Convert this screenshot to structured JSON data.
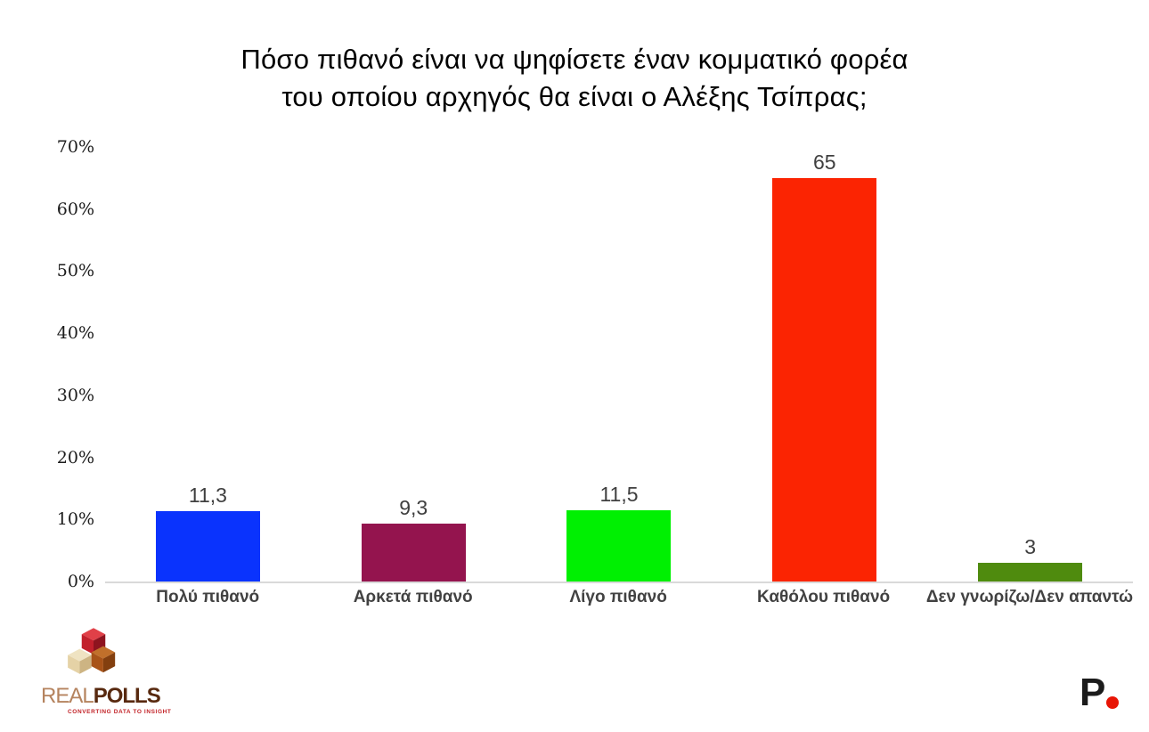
{
  "title": {
    "line1": "Πόσο πιθανό είναι να ψηφίσετε έναν κομματικό φορέα",
    "line2": "του οποίου αρχηγός θα είναι ο Αλέξης Τσίπρας;"
  },
  "chart_data": {
    "type": "bar",
    "categories": [
      "Πολύ πιθανό",
      "Αρκετά πιθανό",
      "Λίγο πιθανό",
      "Καθόλου πιθανό",
      "Δεν γνωρίζω/Δεν απαντώ"
    ],
    "values": [
      11.3,
      9.3,
      11.5,
      65,
      3
    ],
    "value_labels": [
      "11,3",
      "9,3",
      "11,5",
      "65",
      "3"
    ],
    "bar_colors": [
      "#0a33fd",
      "#94144e",
      "#00f002",
      "#fb2402",
      "#4f8b0e"
    ],
    "title": "Πόσο πιθανό είναι να ψηφίσετε έναν κομματικό φορέα του οποίου αρχηγός θα είναι ο Αλέξης Τσίπρας;",
    "xlabel": "",
    "ylabel": "",
    "ylim": [
      0,
      70
    ],
    "yticks": [
      "0%",
      "10%",
      "20%",
      "30%",
      "40%",
      "50%",
      "60%",
      "70%"
    ],
    "grid": false,
    "legend": null,
    "baseline_color": "#d9d9d9",
    "value_label_color": "#3f3f3f",
    "category_label_color": "#424242"
  },
  "footer": {
    "realpolls_logo": {
      "text_light": "REAL",
      "text_bold": "POLLS",
      "tagline": "CONVERTING DATA TO INSIGHT",
      "tagline_color": "#c22227",
      "cube_colors": {
        "red_top": "#e04048",
        "red_left": "#c2202c",
        "red_right": "#8e141f",
        "tan_top": "#efe3c2",
        "tan_left": "#e5d2a6",
        "tan_right": "#cdb483",
        "brown_top": "#c1702b",
        "brown_left": "#a85318",
        "brown_right": "#833f0f"
      }
    },
    "p_logo": {
      "letter": "P",
      "dot_color": "#e81505"
    }
  }
}
